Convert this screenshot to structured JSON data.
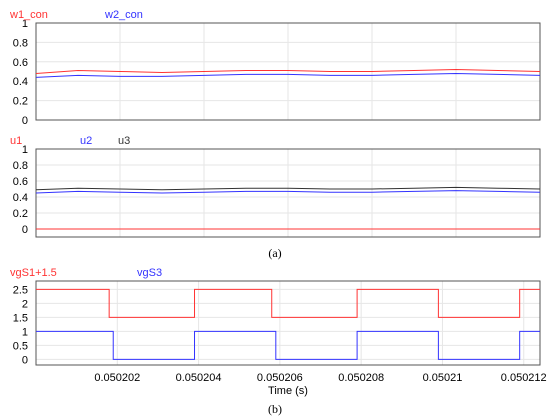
{
  "figure": {
    "caption_a": "(a)",
    "caption_b": "(b)"
  },
  "chart_data": [
    {
      "type": "line",
      "ylim": [
        0,
        1
      ],
      "yticks": [
        "0",
        "0.2",
        "0.4",
        "0.6",
        "0.8",
        "1"
      ],
      "grid": true,
      "legend_placement": "top-left",
      "series": [
        {
          "name": "w1_con",
          "color": "#ff3333",
          "x": [
            0,
            0.5,
            1,
            1.5,
            2,
            2.5,
            3,
            3.5,
            4,
            4.5,
            5,
            5.5,
            6
          ],
          "y": [
            0.48,
            0.51,
            0.5,
            0.49,
            0.5,
            0.51,
            0.51,
            0.5,
            0.5,
            0.51,
            0.52,
            0.51,
            0.5
          ]
        },
        {
          "name": "w2_con",
          "color": "#3333ff",
          "x": [
            0,
            0.5,
            1,
            1.5,
            2,
            2.5,
            3,
            3.5,
            4,
            4.5,
            5,
            5.5,
            6
          ],
          "y": [
            0.44,
            0.46,
            0.45,
            0.45,
            0.46,
            0.47,
            0.47,
            0.46,
            0.46,
            0.47,
            0.48,
            0.47,
            0.46
          ]
        }
      ]
    },
    {
      "type": "line",
      "ylim": [
        -0.1,
        1
      ],
      "yticks": [
        "0",
        "0.2",
        "0.4",
        "0.6",
        "0.8",
        "1"
      ],
      "grid": true,
      "legend_placement": "top-left",
      "series": [
        {
          "name": "u1",
          "color": "#ff3333",
          "x": [
            0,
            6
          ],
          "y": [
            0.0,
            0.0
          ]
        },
        {
          "name": "u2",
          "color": "#3333ff",
          "x": [
            0,
            0.5,
            1,
            1.5,
            2,
            2.5,
            3,
            3.5,
            4,
            4.5,
            5,
            5.5,
            6
          ],
          "y": [
            0.45,
            0.47,
            0.46,
            0.45,
            0.46,
            0.47,
            0.47,
            0.46,
            0.46,
            0.47,
            0.48,
            0.47,
            0.46
          ]
        },
        {
          "name": "u3",
          "color": "#333333",
          "x": [
            0,
            0.5,
            1,
            1.5,
            2,
            2.5,
            3,
            3.5,
            4,
            4.5,
            5,
            5.5,
            6
          ],
          "y": [
            0.49,
            0.51,
            0.5,
            0.49,
            0.5,
            0.51,
            0.51,
            0.5,
            0.5,
            0.51,
            0.52,
            0.51,
            0.5
          ]
        }
      ]
    },
    {
      "type": "line",
      "xlabel": "Time (s)",
      "xlim": [
        0.0502,
        0.0502124
      ],
      "xticks": [
        0.050202,
        0.050204,
        0.050206,
        0.050208,
        0.05021,
        0.050212
      ],
      "xtick_labels": [
        "0.050202",
        "0.050204",
        "0.050206",
        "0.050208",
        "0.05021",
        "0.050212"
      ],
      "ylim": [
        -0.2,
        2.8
      ],
      "yticks": [
        "0",
        "0.5",
        "1",
        "1.5",
        "2",
        "2.5"
      ],
      "grid": true,
      "legend_placement": "top-left",
      "series": [
        {
          "name": "vgS1+1.5",
          "color": "#ff3333",
          "x": [
            0.0502,
            0.0502018,
            0.0502018,
            0.0502039,
            0.0502039,
            0.0502058,
            0.0502058,
            0.0502079,
            0.0502079,
            0.0502099,
            0.0502099,
            0.0502119,
            0.0502119,
            0.0502124
          ],
          "y": [
            2.5,
            2.5,
            1.5,
            1.5,
            2.5,
            2.5,
            1.5,
            1.5,
            2.5,
            2.5,
            1.5,
            1.5,
            2.5,
            2.5
          ]
        },
        {
          "name": "vgS3",
          "color": "#3333ff",
          "x": [
            0.0502,
            0.0502019,
            0.0502019,
            0.0502039,
            0.0502039,
            0.0502059,
            0.0502059,
            0.0502079,
            0.0502079,
            0.0502099,
            0.0502099,
            0.0502119,
            0.0502119,
            0.0502124
          ],
          "y": [
            1.0,
            1.0,
            0.0,
            0.0,
            1.0,
            1.0,
            0.0,
            0.0,
            1.0,
            1.0,
            0.0,
            0.0,
            1.0,
            1.0
          ]
        }
      ]
    }
  ]
}
